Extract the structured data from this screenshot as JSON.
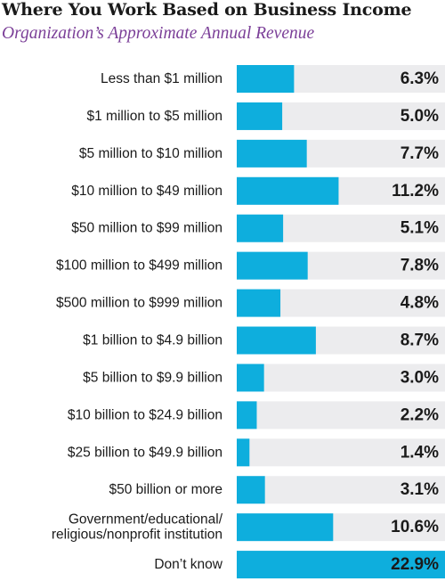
{
  "title": "Where You Work Based on Business Income",
  "subtitle": "Organization’s Approximate Annual Revenue",
  "colors": {
    "bar": "#0eaedd",
    "track": "#ececee",
    "label": "#1a1a1a",
    "subtitle": "#7b3f98"
  },
  "chart_data": {
    "type": "bar",
    "orientation": "horizontal",
    "title": "Where You Work Based on Business Income",
    "subtitle": "Organization’s Approximate Annual Revenue",
    "value_unit": "%",
    "xlim": [
      0,
      22.9
    ],
    "grid": false,
    "categories": [
      [
        "Less than $1 million"
      ],
      [
        "$1 million to $5 million"
      ],
      [
        "$5 million to $10 million"
      ],
      [
        "$10 million to $49 million"
      ],
      [
        "$50 million to $99 million"
      ],
      [
        "$100 million to $499 million"
      ],
      [
        "$500 million to $999 million"
      ],
      [
        "$1 billion to $4.9 billion"
      ],
      [
        "$5 billion to $9.9 billion"
      ],
      [
        "$10 billion to $24.9 billion"
      ],
      [
        "$25 billion to $49.9 billion"
      ],
      [
        "$50 billion or more"
      ],
      [
        "Government/educational/",
        "religious/nonprofit institution"
      ],
      [
        "Don’t know"
      ]
    ],
    "values": [
      6.3,
      5.0,
      7.7,
      11.2,
      5.1,
      7.8,
      4.8,
      8.7,
      3.0,
      2.2,
      1.4,
      3.1,
      10.6,
      22.9
    ],
    "value_labels": [
      "6.3%",
      "5.0%",
      "7.7%",
      "11.2%",
      "5.1%",
      "7.8%",
      "4.8%",
      "8.7%",
      "3.0%",
      "2.2%",
      "1.4%",
      "3.1%",
      "10.6%",
      "22.9%"
    ]
  }
}
